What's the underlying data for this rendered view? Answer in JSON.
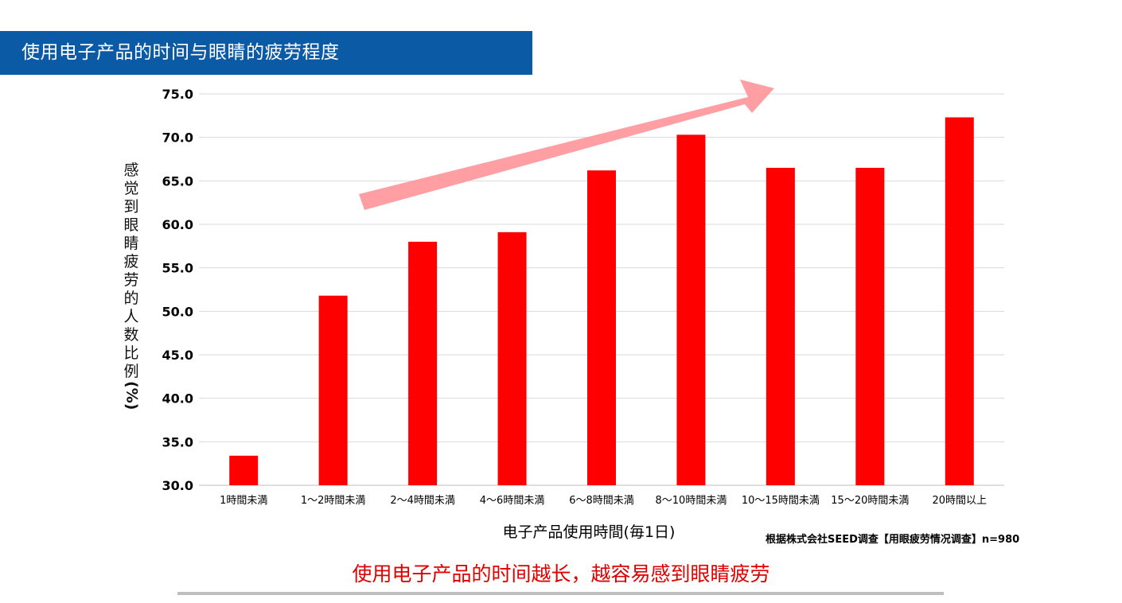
{
  "header": {
    "title": "使用电子产品的时间与眼睛的疲劳程度"
  },
  "chart_data": {
    "type": "bar",
    "ylabel": "感觉到眼睛疲劳的人数比例(%)",
    "xlabel": "电子产品使用時間(毎1日)",
    "ylim": [
      30.0,
      75.0
    ],
    "yticks": [
      "30.0",
      "35.0",
      "40.0",
      "45.0",
      "50.0",
      "55.0",
      "60.0",
      "65.0",
      "70.0",
      "75.0"
    ],
    "grid": true,
    "categories": [
      "1時間未満",
      "1～2時間未満",
      "2～4時間未満",
      "4～6時間未満",
      "6～8時間未満",
      "8～10時間未満",
      "10～15時間未満",
      "15～20時間未満",
      "20時間以上"
    ],
    "series": [
      {
        "values": [
          33.4,
          51.8,
          58.0,
          59.1,
          66.2,
          70.3,
          66.5,
          66.5,
          72.3
        ],
        "color": "#ff0000"
      }
    ],
    "annotation": {
      "type": "arrow",
      "color": "#ff9a9e",
      "meaning": "upward trend"
    }
  },
  "source_note": "根据株式会社SEED调查【用眼疲劳情况调查】n=980",
  "conclusion": "使用电子产品的时间越长，越容易感到眼睛疲劳",
  "colors": {
    "title_bg": "#0b5aa6",
    "bar": "#ff0000",
    "conclusion": "#e00000",
    "arrow": "#ff9a9e"
  }
}
